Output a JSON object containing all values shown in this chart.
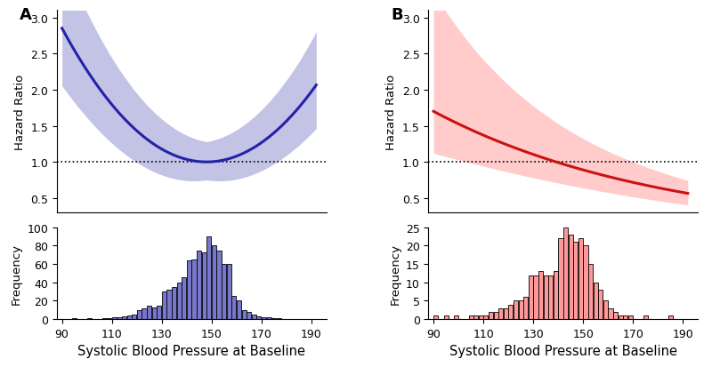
{
  "panel_A": {
    "label": "A",
    "line_color": "#2222AA",
    "fill_color": "#8888CC",
    "fill_alpha": 0.5,
    "ylim": [
      0.3,
      3.1
    ],
    "yticks": [
      0.5,
      1.0,
      1.5,
      2.0,
      2.5,
      3.0
    ],
    "ylabel_top": "Hazard Ratio",
    "hist_color": "#7777CC",
    "hist_edge_color": "#000000",
    "hist_ylim": [
      0,
      100
    ],
    "hist_yticks": [
      0,
      20,
      40,
      60,
      80,
      100
    ],
    "ylabel_bottom": "Frequency",
    "hist_centers": [
      91,
      93,
      95,
      97,
      99,
      101,
      103,
      105,
      107,
      109,
      111,
      113,
      115,
      117,
      119,
      121,
      123,
      125,
      127,
      129,
      131,
      133,
      135,
      137,
      139,
      141,
      143,
      145,
      147,
      149,
      151,
      153,
      155,
      157,
      159,
      161,
      163,
      165,
      167,
      169,
      171,
      173,
      175,
      177,
      179,
      181,
      183,
      185,
      187,
      189,
      191
    ],
    "hist_values": [
      0,
      0,
      1,
      0,
      0,
      1,
      0,
      0,
      1,
      1,
      2,
      2,
      3,
      4,
      5,
      10,
      12,
      15,
      13,
      15,
      30,
      32,
      35,
      40,
      46,
      64,
      65,
      75,
      73,
      90,
      80,
      75,
      60,
      60,
      25,
      20,
      10,
      8,
      5,
      3,
      2,
      2,
      1,
      1,
      0,
      0,
      0,
      0,
      0,
      0,
      0
    ]
  },
  "panel_B": {
    "label": "B",
    "line_color": "#CC1111",
    "fill_color": "#FF9999",
    "fill_alpha": 0.5,
    "ylim": [
      0.3,
      3.1
    ],
    "yticks": [
      0.5,
      1.0,
      1.5,
      2.0,
      2.5,
      3.0
    ],
    "ylabel_top": "Hazard Ratio",
    "hist_color": "#FF9999",
    "hist_edge_color": "#000000",
    "hist_ylim": [
      0,
      25
    ],
    "hist_yticks": [
      0,
      5,
      10,
      15,
      20,
      25
    ],
    "ylabel_bottom": "Frequency",
    "hist_centers": [
      91,
      93,
      95,
      97,
      99,
      101,
      103,
      105,
      107,
      109,
      111,
      113,
      115,
      117,
      119,
      121,
      123,
      125,
      127,
      129,
      131,
      133,
      135,
      137,
      139,
      141,
      143,
      145,
      147,
      149,
      151,
      153,
      155,
      157,
      159,
      161,
      163,
      165,
      167,
      169,
      171,
      173,
      175,
      177,
      179,
      181,
      183,
      185,
      187,
      189,
      191
    ],
    "hist_values": [
      1,
      0,
      1,
      0,
      1,
      0,
      0,
      1,
      1,
      1,
      1,
      2,
      2,
      3,
      3,
      4,
      5,
      5,
      6,
      12,
      12,
      13,
      12,
      12,
      13,
      22,
      25,
      23,
      21,
      22,
      20,
      15,
      10,
      8,
      5,
      3,
      2,
      1,
      1,
      1,
      0,
      0,
      1,
      0,
      0,
      0,
      0,
      1,
      0,
      0,
      0
    ]
  },
  "xlim": [
    88,
    196
  ],
  "xticks": [
    90,
    110,
    130,
    150,
    170,
    190
  ],
  "xlabel": "Systolic Blood Pressure at Baseline",
  "dpi": 100,
  "figsize": [
    8.0,
    4.14
  ]
}
